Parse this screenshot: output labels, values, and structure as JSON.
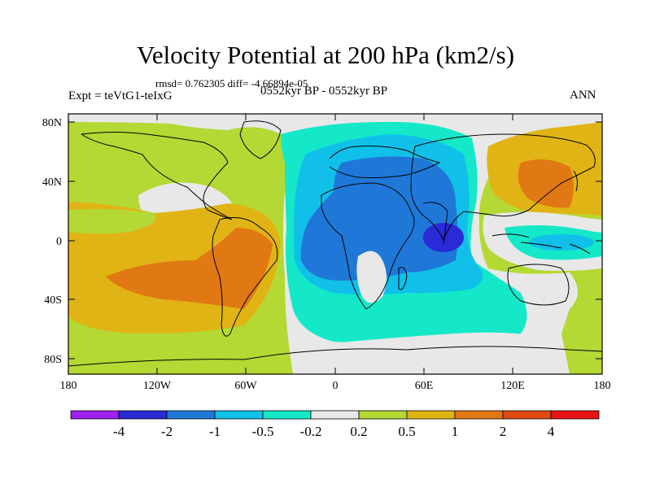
{
  "title": "Velocity Potential at 200 hPa (km2/s)",
  "stats_text": "rmsd= 0.762305 diff= -4.66894e-05",
  "experiment_text": "Expt = teVtG1-teIxG",
  "period_text": "0552kyr BP - 0552kyr BP",
  "season_text": "ANN",
  "lat_labels": [
    "80N",
    "40N",
    "0",
    "40S",
    "80S"
  ],
  "lon_labels": [
    "180",
    "120W",
    "60W",
    "0",
    "60E",
    "120E",
    "180"
  ],
  "colorbar": {
    "colors": [
      "#a020f0",
      "#2a2ad6",
      "#1f78d8",
      "#10c0e8",
      "#14e8c8",
      "#e8e8e8",
      "#b4d834",
      "#e0b414",
      "#e07814",
      "#e04a14",
      "#e81414"
    ],
    "labels": [
      "-4",
      "-2",
      "-1",
      "-0.5",
      "-0.2",
      "0.2",
      "0.5",
      "1",
      "2",
      "4"
    ]
  }
}
